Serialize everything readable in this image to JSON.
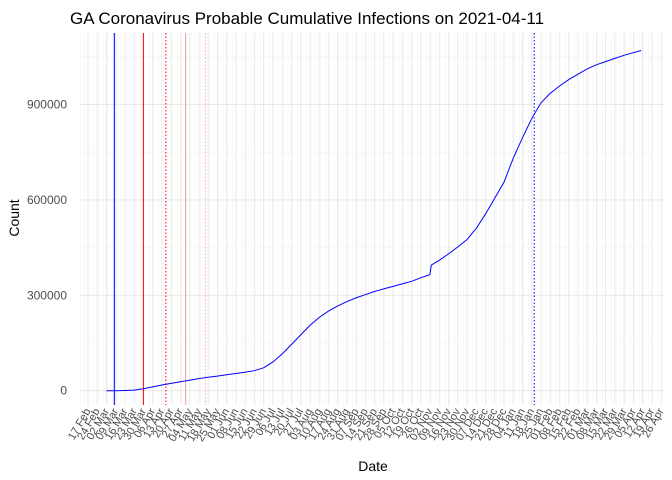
{
  "chart_data": {
    "type": "line",
    "title": "GA Coronavirus Probable Cumulative Infections on 2021-04-11",
    "xlabel": "Date",
    "ylabel": "Count",
    "xlim": [
      "2020-02-11",
      "2021-04-29"
    ],
    "ylim": [
      -45000,
      1125000
    ],
    "yticks": [
      0,
      300000,
      600000,
      900000
    ],
    "ytick_labels": [
      "0",
      "300000",
      "600000",
      "900000"
    ],
    "xtick_labels": [
      "17 Feb",
      "24 Feb",
      "02 Mar",
      "09 Mar",
      "16 Mar",
      "23 Mar",
      "30 Mar",
      "06 Apr",
      "13 Apr",
      "20 Apr",
      "27 Apr",
      "04 May",
      "11 May",
      "18 May",
      "25 May",
      "01 Jun",
      "08 Jun",
      "15 Jun",
      "22 Jun",
      "29 Jun",
      "06 Jul",
      "13 Jul",
      "20 Jul",
      "27 Jul",
      "03 Aug",
      "10 Aug",
      "17 Aug",
      "24 Aug",
      "31 Aug",
      "07 Sep",
      "14 Sep",
      "21 Sep",
      "28 Sep",
      "05 Oct",
      "12 Oct",
      "19 Oct",
      "26 Oct",
      "02 Nov",
      "09 Nov",
      "16 Nov",
      "23 Nov",
      "30 Nov",
      "07 Dec",
      "14 Dec",
      "21 Dec",
      "28 Dec",
      "04 Jan",
      "11 Jan",
      "18 Jan",
      "25 Jan",
      "01 Feb",
      "08 Feb",
      "15 Feb",
      "22 Feb",
      "01 Mar",
      "08 Mar",
      "15 Mar",
      "22 Mar",
      "29 Mar",
      "05 Apr",
      "12 Apr",
      "19 Apr",
      "26 Apr"
    ],
    "xtick_dates": [
      "2020-02-17",
      "2020-02-24",
      "2020-03-02",
      "2020-03-09",
      "2020-03-16",
      "2020-03-23",
      "2020-03-30",
      "2020-04-06",
      "2020-04-13",
      "2020-04-20",
      "2020-04-27",
      "2020-05-04",
      "2020-05-11",
      "2020-05-18",
      "2020-05-25",
      "2020-06-01",
      "2020-06-08",
      "2020-06-15",
      "2020-06-22",
      "2020-06-29",
      "2020-07-06",
      "2020-07-13",
      "2020-07-20",
      "2020-07-27",
      "2020-08-03",
      "2020-08-10",
      "2020-08-17",
      "2020-08-24",
      "2020-08-31",
      "2020-09-07",
      "2020-09-14",
      "2020-09-21",
      "2020-09-28",
      "2020-10-05",
      "2020-10-12",
      "2020-10-19",
      "2020-10-26",
      "2020-11-02",
      "2020-11-09",
      "2020-11-16",
      "2020-11-23",
      "2020-11-30",
      "2020-12-07",
      "2020-12-14",
      "2020-12-21",
      "2020-12-28",
      "2021-01-04",
      "2021-01-11",
      "2021-01-18",
      "2021-01-25",
      "2021-02-01",
      "2021-02-08",
      "2021-02-15",
      "2021-02-22",
      "2021-03-01",
      "2021-03-08",
      "2021-03-15",
      "2021-03-22",
      "2021-03-29",
      "2021-04-05",
      "2021-04-12",
      "2021-04-19",
      "2021-04-26"
    ],
    "grid": true,
    "series": [
      {
        "color": "#0000ff",
        "x": [
          "2020-03-02",
          "2020-03-09",
          "2020-03-16",
          "2020-03-23",
          "2020-03-30",
          "2020-04-06",
          "2020-04-13",
          "2020-04-20",
          "2020-04-27",
          "2020-05-04",
          "2020-05-11",
          "2020-05-18",
          "2020-05-25",
          "2020-06-01",
          "2020-06-08",
          "2020-06-15",
          "2020-06-22",
          "2020-06-29",
          "2020-07-06",
          "2020-07-13",
          "2020-07-20",
          "2020-07-27",
          "2020-08-03",
          "2020-08-10",
          "2020-08-17",
          "2020-08-24",
          "2020-08-31",
          "2020-09-07",
          "2020-09-14",
          "2020-09-21",
          "2020-09-28",
          "2020-10-05",
          "2020-10-12",
          "2020-10-19",
          "2020-10-26",
          "2020-11-02",
          "2020-11-03",
          "2020-11-09",
          "2020-11-16",
          "2020-11-23",
          "2020-11-30",
          "2020-12-07",
          "2020-12-14",
          "2020-12-21",
          "2020-12-28",
          "2021-01-04",
          "2021-01-11",
          "2021-01-18",
          "2021-01-25",
          "2021-02-01",
          "2021-02-08",
          "2021-02-15",
          "2021-02-22",
          "2021-03-01",
          "2021-03-08",
          "2021-03-15",
          "2021-03-22",
          "2021-03-29",
          "2021-04-05",
          "2021-04-11"
        ],
        "y": [
          0,
          0,
          500,
          2000,
          6000,
          12000,
          18000,
          23000,
          28000,
          33000,
          38000,
          42000,
          46000,
          50000,
          54000,
          58000,
          63000,
          72000,
          90000,
          115000,
          145000,
          175000,
          205000,
          230000,
          250000,
          266000,
          280000,
          292000,
          302000,
          312000,
          320000,
          328000,
          336000,
          344000,
          355000,
          365000,
          395000,
          410000,
          430000,
          452000,
          475000,
          510000,
          555000,
          605000,
          655000,
          730000,
          795000,
          855000,
          905000,
          935000,
          958000,
          978000,
          995000,
          1012000,
          1025000,
          1035000,
          1045000,
          1055000,
          1063000,
          1070000
        ]
      }
    ],
    "vlines": [
      {
        "date": "2020-03-08",
        "color": "#0000ff",
        "style": "solid"
      },
      {
        "date": "2020-03-30",
        "color": "#ff0000",
        "style": "solid"
      },
      {
        "date": "2020-04-16",
        "color": "#ff0000",
        "style": "dotted"
      },
      {
        "date": "2020-05-01",
        "color": "#ff9999",
        "style": "solid"
      },
      {
        "date": "2020-05-16",
        "color": "#ffaaaa",
        "style": "dotted"
      },
      {
        "date": "2021-01-20",
        "color": "#0000ff",
        "style": "dotted"
      }
    ]
  }
}
